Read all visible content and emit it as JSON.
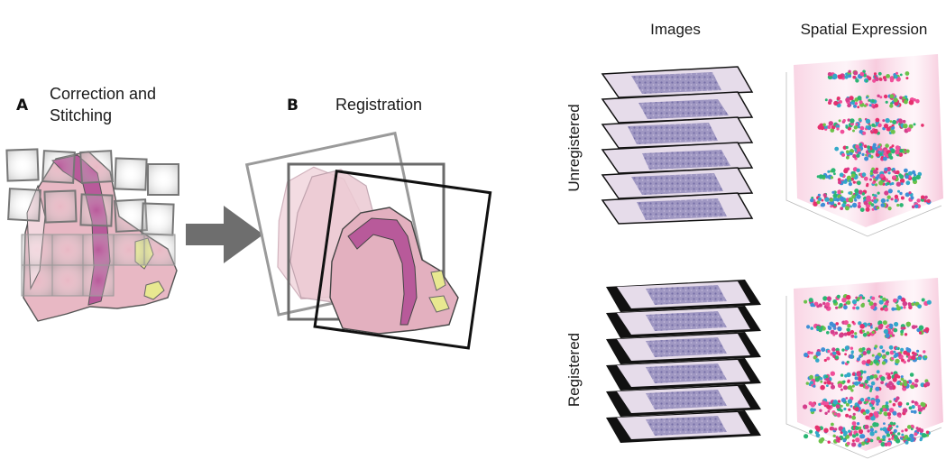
{
  "panel_a": {
    "letter": "A",
    "title_line1": "Correction and",
    "title_line2": "Stitching"
  },
  "panel_b": {
    "letter": "B",
    "title": "Registration"
  },
  "panel_c": {
    "col_images": "Images",
    "col_spatial": "Spatial Expression",
    "row_unregistered": "Unregistered",
    "row_registered": "Registered",
    "section_count": 6
  },
  "colors": {
    "tissue": "#e8b8c4",
    "tissue_dark": "#b85a9a",
    "tissue_light": "#f2d7de",
    "yellow": "#e8e890",
    "slide": "#c9b6d0",
    "arrow": "#6e6e6e"
  }
}
